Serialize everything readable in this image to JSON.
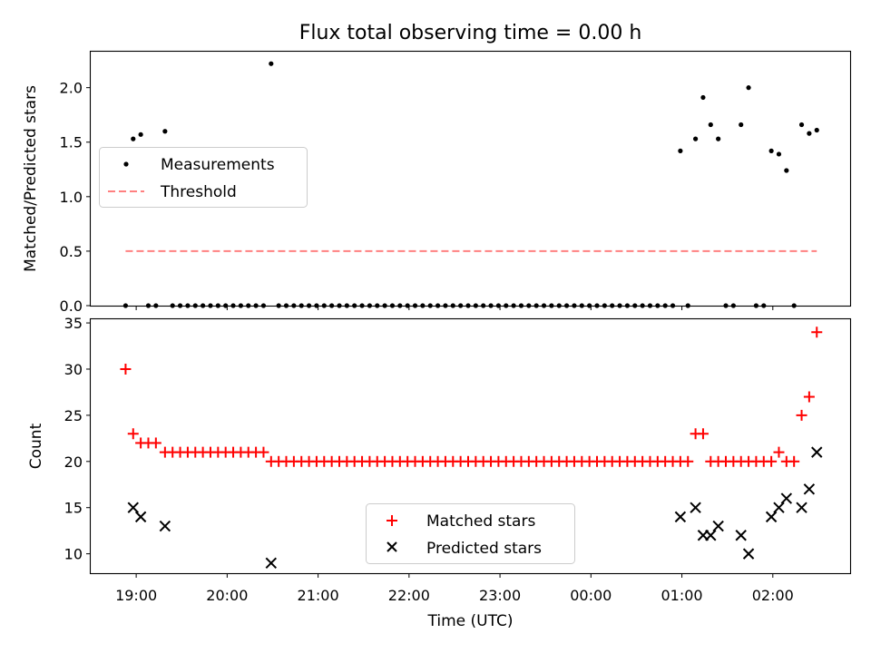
{
  "figure": {
    "title": "Flux total observing time = 0.00 h",
    "xlabel": "Time (UTC)",
    "x_tick_labels": [
      "19:00",
      "20:00",
      "21:00",
      "22:00",
      "23:00",
      "00:00",
      "01:00",
      "02:00"
    ]
  },
  "chart_data": [
    {
      "type": "scatter",
      "panel": "top",
      "ylabel": "Matched/Predicted stars",
      "ylim": [
        0.0,
        2.33
      ],
      "y_ticks": [
        "0.0",
        "0.5",
        "1.0",
        "1.5",
        "2.0"
      ],
      "x_tick_values": [
        "19:00",
        "20:00",
        "21:00",
        "22:00",
        "23:00",
        "00:00",
        "01:00",
        "02:00"
      ],
      "xlim": [
        "18:30",
        "02:51"
      ],
      "legend_position": "center-left",
      "series": [
        {
          "name": "Measurements",
          "marker": "dot",
          "color": "#000000",
          "points": [
            [
              "18:53",
              0.0
            ],
            [
              "18:58",
              1.53
            ],
            [
              "19:03",
              1.57
            ],
            [
              "19:08",
              0.0
            ],
            [
              "19:13",
              0.0
            ],
            [
              "19:19",
              1.6
            ],
            [
              "19:24",
              0.0
            ],
            [
              "19:29",
              0.0
            ],
            [
              "19:34",
              0.0
            ],
            [
              "19:39",
              0.0
            ],
            [
              "19:44",
              0.0
            ],
            [
              "19:49",
              0.0
            ],
            [
              "19:54",
              0.0
            ],
            [
              "19:59",
              0.0
            ],
            [
              "20:04",
              0.0
            ],
            [
              "20:09",
              0.0
            ],
            [
              "20:14",
              0.0
            ],
            [
              "20:19",
              0.0
            ],
            [
              "20:24",
              0.0
            ],
            [
              "20:29",
              2.22
            ],
            [
              "20:34",
              0.0
            ],
            [
              "20:39",
              0.0
            ],
            [
              "20:44",
              0.0
            ],
            [
              "20:49",
              0.0
            ],
            [
              "20:54",
              0.0
            ],
            [
              "20:59",
              0.0
            ],
            [
              "21:04",
              0.0
            ],
            [
              "21:09",
              0.0
            ],
            [
              "21:14",
              0.0
            ],
            [
              "21:19",
              0.0
            ],
            [
              "21:24",
              0.0
            ],
            [
              "21:29",
              0.0
            ],
            [
              "21:34",
              0.0
            ],
            [
              "21:39",
              0.0
            ],
            [
              "21:44",
              0.0
            ],
            [
              "21:49",
              0.0
            ],
            [
              "21:54",
              0.0
            ],
            [
              "21:59",
              0.0
            ],
            [
              "22:04",
              0.0
            ],
            [
              "22:09",
              0.0
            ],
            [
              "22:14",
              0.0
            ],
            [
              "22:19",
              0.0
            ],
            [
              "22:24",
              0.0
            ],
            [
              "22:29",
              0.0
            ],
            [
              "22:34",
              0.0
            ],
            [
              "22:39",
              0.0
            ],
            [
              "22:44",
              0.0
            ],
            [
              "22:49",
              0.0
            ],
            [
              "22:54",
              0.0
            ],
            [
              "22:59",
              0.0
            ],
            [
              "23:04",
              0.0
            ],
            [
              "23:09",
              0.0
            ],
            [
              "23:14",
              0.0
            ],
            [
              "23:19",
              0.0
            ],
            [
              "23:24",
              0.0
            ],
            [
              "23:29",
              0.0
            ],
            [
              "23:34",
              0.0
            ],
            [
              "23:39",
              0.0
            ],
            [
              "23:44",
              0.0
            ],
            [
              "23:49",
              0.0
            ],
            [
              "23:54",
              0.0
            ],
            [
              "23:59",
              0.0
            ],
            [
              "00:04",
              0.0
            ],
            [
              "00:09",
              0.0
            ],
            [
              "00:14",
              0.0
            ],
            [
              "00:19",
              0.0
            ],
            [
              "00:24",
              0.0
            ],
            [
              "00:29",
              0.0
            ],
            [
              "00:34",
              0.0
            ],
            [
              "00:39",
              0.0
            ],
            [
              "00:44",
              0.0
            ],
            [
              "00:49",
              0.0
            ],
            [
              "00:54",
              0.0
            ],
            [
              "00:59",
              1.42
            ],
            [
              "01:04",
              0.0
            ],
            [
              "01:09",
              1.53
            ],
            [
              "01:14",
              1.91
            ],
            [
              "01:19",
              1.66
            ],
            [
              "01:24",
              1.53
            ],
            [
              "01:29",
              0.0
            ],
            [
              "01:34",
              0.0
            ],
            [
              "01:39",
              1.66
            ],
            [
              "01:44",
              2.0
            ],
            [
              "01:49",
              0.0
            ],
            [
              "01:54",
              0.0
            ],
            [
              "01:59",
              1.42
            ],
            [
              "02:04",
              1.39
            ],
            [
              "02:09",
              1.24
            ],
            [
              "02:14",
              0.0
            ],
            [
              "02:19",
              1.66
            ],
            [
              "02:24",
              1.58
            ],
            [
              "02:29",
              1.61
            ]
          ]
        },
        {
          "name": "Threshold",
          "marker": "dashed-line",
          "color": "#ff8080",
          "points": [
            [
              "18:53",
              0.5
            ],
            [
              "02:29",
              0.5
            ]
          ]
        }
      ]
    },
    {
      "type": "scatter",
      "panel": "bottom",
      "ylabel": "Count",
      "xlabel": "Time (UTC)",
      "ylim": [
        7.9,
        35.4
      ],
      "y_ticks": [
        "10",
        "15",
        "20",
        "25",
        "30",
        "35"
      ],
      "x_tick_values": [
        "19:00",
        "20:00",
        "21:00",
        "22:00",
        "23:00",
        "00:00",
        "01:00",
        "02:00"
      ],
      "xlim": [
        "18:30",
        "02:51"
      ],
      "legend_position": "lower-center",
      "series": [
        {
          "name": "Matched stars",
          "marker": "plus",
          "color": "#ff0000",
          "points": [
            [
              "18:53",
              30
            ],
            [
              "18:58",
              23
            ],
            [
              "19:03",
              22
            ],
            [
              "19:08",
              22
            ],
            [
              "19:13",
              22
            ],
            [
              "19:19",
              21
            ],
            [
              "19:24",
              21
            ],
            [
              "19:29",
              21
            ],
            [
              "19:34",
              21
            ],
            [
              "19:39",
              21
            ],
            [
              "19:44",
              21
            ],
            [
              "19:49",
              21
            ],
            [
              "19:54",
              21
            ],
            [
              "19:59",
              21
            ],
            [
              "20:04",
              21
            ],
            [
              "20:09",
              21
            ],
            [
              "20:14",
              21
            ],
            [
              "20:19",
              21
            ],
            [
              "20:24",
              21
            ],
            [
              "20:29",
              20
            ],
            [
              "20:34",
              20
            ],
            [
              "20:39",
              20
            ],
            [
              "20:44",
              20
            ],
            [
              "20:49",
              20
            ],
            [
              "20:54",
              20
            ],
            [
              "20:59",
              20
            ],
            [
              "21:04",
              20
            ],
            [
              "21:09",
              20
            ],
            [
              "21:14",
              20
            ],
            [
              "21:19",
              20
            ],
            [
              "21:24",
              20
            ],
            [
              "21:29",
              20
            ],
            [
              "21:34",
              20
            ],
            [
              "21:39",
              20
            ],
            [
              "21:44",
              20
            ],
            [
              "21:49",
              20
            ],
            [
              "21:54",
              20
            ],
            [
              "21:59",
              20
            ],
            [
              "22:04",
              20
            ],
            [
              "22:09",
              20
            ],
            [
              "22:14",
              20
            ],
            [
              "22:19",
              20
            ],
            [
              "22:24",
              20
            ],
            [
              "22:29",
              20
            ],
            [
              "22:34",
              20
            ],
            [
              "22:39",
              20
            ],
            [
              "22:44",
              20
            ],
            [
              "22:49",
              20
            ],
            [
              "22:54",
              20
            ],
            [
              "22:59",
              20
            ],
            [
              "23:04",
              20
            ],
            [
              "23:09",
              20
            ],
            [
              "23:14",
              20
            ],
            [
              "23:19",
              20
            ],
            [
              "23:24",
              20
            ],
            [
              "23:29",
              20
            ],
            [
              "23:34",
              20
            ],
            [
              "23:39",
              20
            ],
            [
              "23:44",
              20
            ],
            [
              "23:49",
              20
            ],
            [
              "23:54",
              20
            ],
            [
              "23:59",
              20
            ],
            [
              "00:04",
              20
            ],
            [
              "00:09",
              20
            ],
            [
              "00:14",
              20
            ],
            [
              "00:19",
              20
            ],
            [
              "00:24",
              20
            ],
            [
              "00:29",
              20
            ],
            [
              "00:34",
              20
            ],
            [
              "00:39",
              20
            ],
            [
              "00:44",
              20
            ],
            [
              "00:49",
              20
            ],
            [
              "00:54",
              20
            ],
            [
              "00:59",
              20
            ],
            [
              "01:04",
              20
            ],
            [
              "01:09",
              23
            ],
            [
              "01:14",
              23
            ],
            [
              "01:19",
              20
            ],
            [
              "01:24",
              20
            ],
            [
              "01:29",
              20
            ],
            [
              "01:34",
              20
            ],
            [
              "01:39",
              20
            ],
            [
              "01:44",
              20
            ],
            [
              "01:49",
              20
            ],
            [
              "01:54",
              20
            ],
            [
              "01:59",
              20
            ],
            [
              "02:04",
              21
            ],
            [
              "02:09",
              20
            ],
            [
              "02:14",
              20
            ],
            [
              "02:19",
              25
            ],
            [
              "02:24",
              27
            ],
            [
              "02:29",
              34
            ]
          ]
        },
        {
          "name": "Predicted stars",
          "marker": "x",
          "color": "#000000",
          "points": [
            [
              "18:58",
              15
            ],
            [
              "19:03",
              14
            ],
            [
              "19:19",
              13
            ],
            [
              "20:29",
              9
            ],
            [
              "00:59",
              14
            ],
            [
              "01:09",
              15
            ],
            [
              "01:14",
              12
            ],
            [
              "01:19",
              12
            ],
            [
              "01:24",
              13
            ],
            [
              "01:39",
              12
            ],
            [
              "01:44",
              10
            ],
            [
              "01:59",
              14
            ],
            [
              "02:04",
              15
            ],
            [
              "02:09",
              16
            ],
            [
              "02:19",
              15
            ],
            [
              "02:24",
              17
            ],
            [
              "02:29",
              21
            ]
          ]
        }
      ]
    }
  ]
}
